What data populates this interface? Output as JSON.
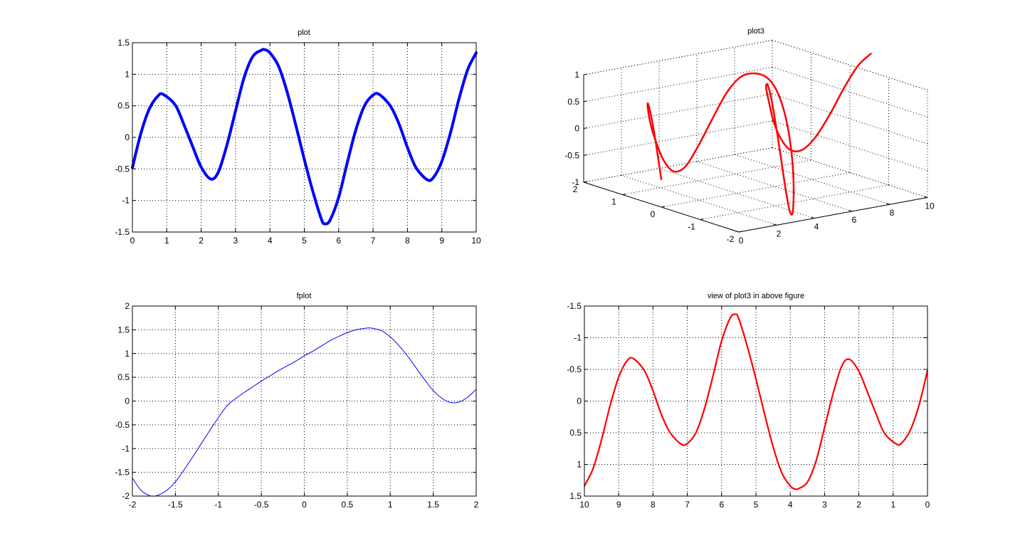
{
  "chart_data": [
    {
      "id": "plot",
      "type": "line",
      "title": "plot",
      "xlim": [
        0,
        10
      ],
      "ylim": [
        -1.5,
        1.5
      ],
      "xticks": [
        0,
        1,
        2,
        3,
        4,
        5,
        6,
        7,
        8,
        9,
        10
      ],
      "yticks": [
        -1.5,
        -1,
        -0.5,
        0,
        0.5,
        1,
        1.5
      ],
      "grid": true,
      "series": [
        {
          "color": "#0000ff",
          "line_width": 4,
          "x": [
            0,
            0.25,
            0.5,
            0.75,
            0.9,
            1.25,
            1.5,
            1.75,
            2.0,
            2.28,
            2.5,
            2.75,
            3.0,
            3.25,
            3.5,
            3.75,
            3.85,
            4.0,
            4.25,
            4.5,
            4.75,
            5.0,
            5.25,
            5.5,
            5.6,
            5.75,
            6.0,
            6.25,
            6.5,
            6.75,
            7.0,
            7.18,
            7.5,
            7.75,
            8.0,
            8.25,
            8.57,
            8.75,
            9.0,
            9.25,
            9.5,
            9.75,
            10.0
          ],
          "y": [
            -0.48,
            0.07,
            0.46,
            0.66,
            0.68,
            0.51,
            0.2,
            -0.14,
            -0.47,
            -0.66,
            -0.55,
            -0.12,
            0.42,
            0.95,
            1.28,
            1.38,
            1.39,
            1.34,
            1.13,
            0.72,
            0.2,
            -0.35,
            -0.86,
            -1.3,
            -1.37,
            -1.31,
            -0.95,
            -0.4,
            0.12,
            0.5,
            0.67,
            0.68,
            0.5,
            0.22,
            -0.16,
            -0.48,
            -0.67,
            -0.64,
            -0.38,
            0.07,
            0.61,
            1.07,
            1.34
          ]
        }
      ]
    },
    {
      "id": "plot3",
      "type": "line",
      "title": "plot3",
      "xlim": [
        0,
        10
      ],
      "ylim": [
        -2,
        2
      ],
      "zlim": [
        -1,
        1
      ],
      "xticks": [
        0,
        2,
        4,
        6,
        8,
        10
      ],
      "yticks": [
        -2,
        -1,
        0,
        1,
        2
      ],
      "zticks": [
        -1,
        -0.5,
        0,
        0.5,
        1
      ],
      "xtick_labels": [
        "0",
        "2",
        "4",
        "6",
        "8",
        "10"
      ],
      "ytick_labels": [
        "-2",
        "-1",
        "0",
        "1",
        "2"
      ],
      "ztick_labels": [
        "-1",
        "-0.5",
        "0",
        "0.5",
        "1"
      ],
      "grid": true,
      "series": [
        {
          "color": "#ff0000",
          "line_width": 2.5,
          "x": [
            0,
            0.25,
            0.5,
            0.75,
            1.0,
            1.25,
            1.5,
            1.75,
            2.0,
            2.25,
            2.5,
            2.75,
            3.0,
            3.25,
            3.5,
            3.75,
            4.0,
            4.25,
            4.5,
            4.75,
            5.0,
            5.25,
            5.5,
            5.75,
            6.0,
            6.25,
            6.5,
            6.75,
            7.0,
            7.25,
            7.5,
            7.75,
            8.0,
            8.25,
            8.5,
            8.75,
            9.0,
            9.25,
            9.5,
            9.75,
            10.0
          ],
          "y": [
            0,
            0.25,
            0.48,
            0.68,
            0.84,
            0.95,
            1.0,
            0.98,
            0.91,
            0.78,
            0.6,
            0.38,
            0.14,
            -0.11,
            -0.35,
            -0.57,
            -0.76,
            -0.89,
            -0.98,
            -1.0,
            -0.96,
            -0.86,
            -0.71,
            -0.51,
            -0.28,
            -0.03,
            0.22,
            0.45,
            0.66,
            0.82,
            0.94,
            0.99,
            0.99,
            0.92,
            0.8,
            0.62,
            0.41,
            0.17,
            -0.08,
            -0.32,
            -0.54
          ],
          "z": [
            -0.48,
            0.07,
            0.46,
            0.66,
            0.67,
            0.51,
            0.2,
            -0.14,
            -0.47,
            -0.66,
            -0.55,
            -0.12,
            0.42,
            0.95,
            1.28,
            1.38,
            1.34,
            1.13,
            0.72,
            0.2,
            -0.35,
            -0.86,
            -1.3,
            -1.31,
            -0.95,
            -0.4,
            0.12,
            0.5,
            0.67,
            0.62,
            0.5,
            0.22,
            -0.16,
            -0.48,
            -0.67,
            -0.64,
            -0.38,
            0.07,
            0.61,
            1.07,
            1.34
          ]
        }
      ]
    },
    {
      "id": "fplot",
      "type": "line",
      "title": "fplot",
      "xlim": [
        -2,
        2
      ],
      "ylim": [
        -2,
        2
      ],
      "xticks": [
        -2,
        -1.5,
        -1,
        -0.5,
        0,
        0.5,
        1,
        1.5,
        2
      ],
      "yticks": [
        -2,
        -1.5,
        -1,
        -0.5,
        0,
        0.5,
        1,
        1.5,
        2
      ],
      "grid": true,
      "series": [
        {
          "color": "#0000ff",
          "line_width": 1,
          "x": [
            -2.0,
            -1.9,
            -1.8,
            -1.75,
            -1.7,
            -1.6,
            -1.5,
            -1.4,
            -1.3,
            -1.2,
            -1.1,
            -1.0,
            -0.9,
            -0.8,
            -0.7,
            -0.6,
            -0.5,
            -0.4,
            -0.3,
            -0.2,
            -0.1,
            0.0,
            0.1,
            0.2,
            0.3,
            0.4,
            0.5,
            0.6,
            0.7,
            0.75,
            0.8,
            0.9,
            1.0,
            1.1,
            1.2,
            1.3,
            1.4,
            1.5,
            1.6,
            1.7,
            1.8,
            1.9,
            2.0
          ],
          "y": [
            -1.62,
            -1.88,
            -1.99,
            -2.0,
            -1.98,
            -1.88,
            -1.7,
            -1.45,
            -1.18,
            -0.9,
            -0.62,
            -0.35,
            -0.1,
            0.05,
            0.18,
            0.3,
            0.42,
            0.53,
            0.64,
            0.74,
            0.84,
            0.95,
            1.05,
            1.16,
            1.27,
            1.36,
            1.44,
            1.5,
            1.53,
            1.54,
            1.53,
            1.48,
            1.35,
            1.17,
            0.95,
            0.7,
            0.45,
            0.22,
            0.06,
            -0.03,
            -0.02,
            0.08,
            0.25
          ]
        }
      ]
    },
    {
      "id": "view",
      "type": "line",
      "title": "view of plot3 in above figure",
      "xlim": [
        10,
        0
      ],
      "ylim": [
        1.5,
        -1.5
      ],
      "x_reversed": true,
      "y_reversed": true,
      "xticks": [
        10,
        9,
        8,
        7,
        6,
        5,
        4,
        3,
        2,
        1,
        0
      ],
      "yticks": [
        -1.5,
        -1,
        -0.5,
        0,
        0.5,
        1,
        1.5
      ],
      "ytick_labels": [
        "-1.5",
        "-1",
        "-0.5",
        "0",
        "0.5",
        "1",
        "1.5"
      ],
      "grid": true,
      "series": [
        {
          "color": "#ff0000",
          "line_width": 2.2,
          "x": [
            0,
            0.25,
            0.5,
            0.75,
            0.9,
            1.25,
            1.5,
            1.75,
            2.0,
            2.28,
            2.5,
            2.75,
            3.0,
            3.25,
            3.5,
            3.75,
            3.85,
            4.0,
            4.25,
            4.5,
            4.75,
            5.0,
            5.25,
            5.5,
            5.6,
            5.75,
            6.0,
            6.25,
            6.5,
            6.75,
            7.0,
            7.18,
            7.5,
            7.75,
            8.0,
            8.25,
            8.57,
            8.75,
            9.0,
            9.25,
            9.5,
            9.75,
            10.0
          ],
          "y": [
            -0.48,
            0.07,
            0.46,
            0.66,
            0.68,
            0.51,
            0.2,
            -0.14,
            -0.47,
            -0.66,
            -0.55,
            -0.12,
            0.42,
            0.95,
            1.28,
            1.38,
            1.39,
            1.34,
            1.13,
            0.72,
            0.2,
            -0.35,
            -0.86,
            -1.3,
            -1.37,
            -1.31,
            -0.95,
            -0.4,
            0.12,
            0.5,
            0.67,
            0.68,
            0.5,
            0.22,
            -0.16,
            -0.48,
            -0.67,
            -0.64,
            -0.38,
            0.07,
            0.61,
            1.07,
            1.34
          ]
        }
      ]
    }
  ]
}
